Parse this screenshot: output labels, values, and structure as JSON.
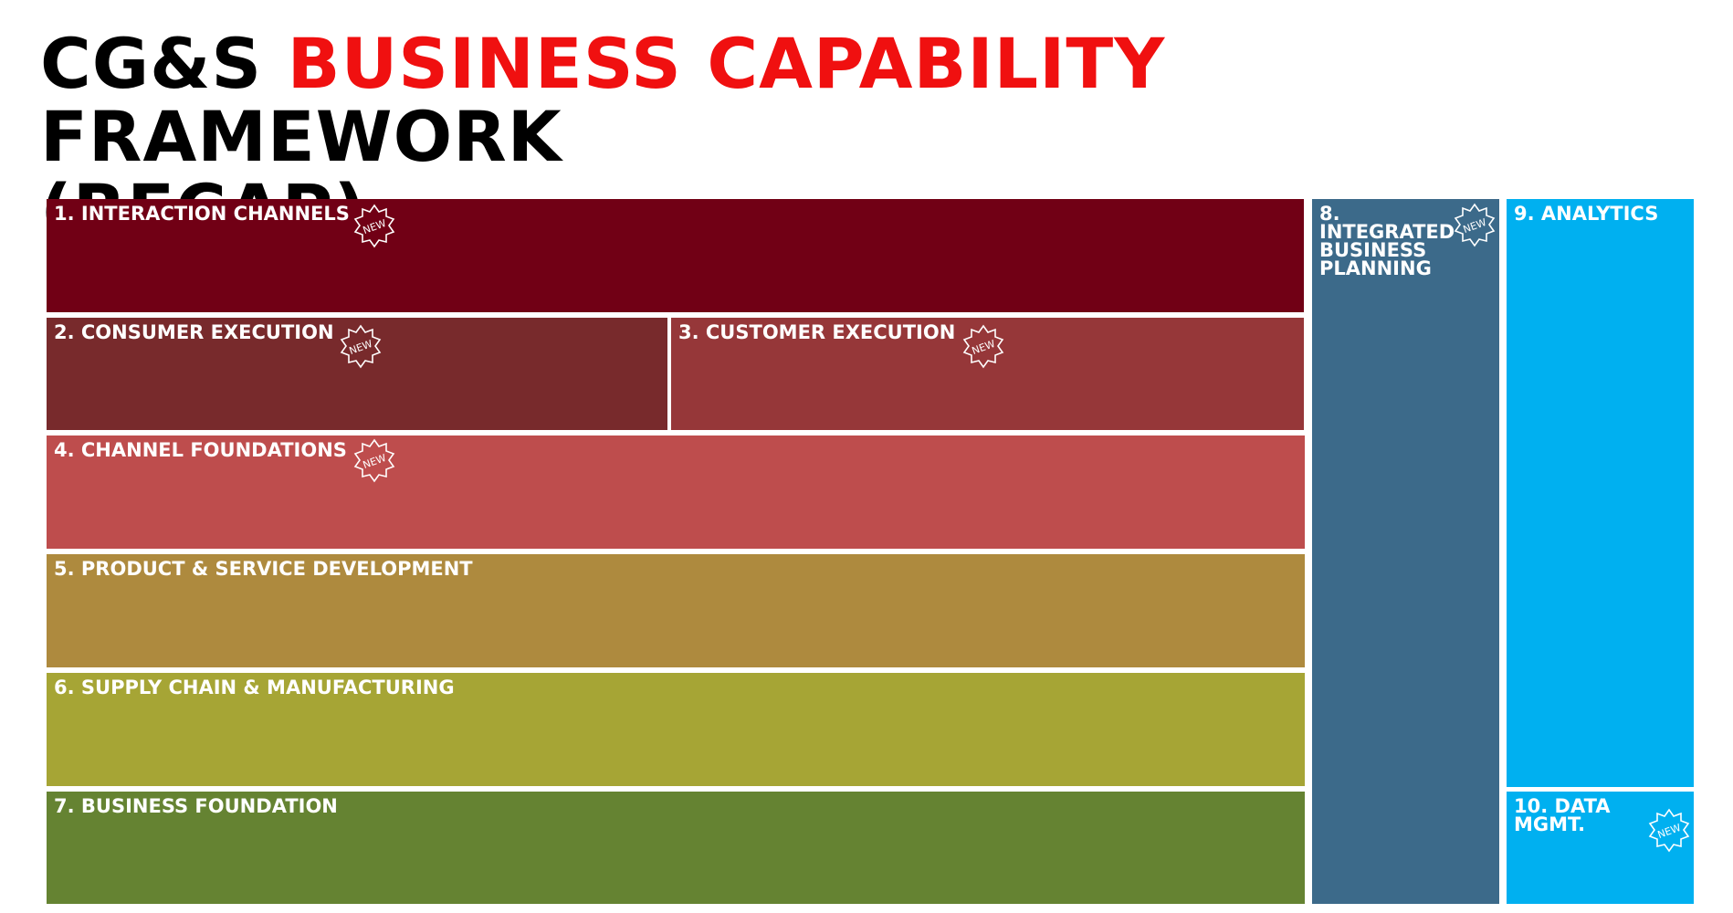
{
  "title": {
    "part1": "CG&S",
    "part2": "BUSINESS CAPABILITY",
    "part3": "FRAMEWORK",
    "part4": "(RECAP)"
  },
  "colors": {
    "title_accent": "#f01010",
    "interaction_channels": "#710015",
    "consumer_execution": "#782a2c",
    "customer_execution": "#963739",
    "channel_foundations": "#be4d4d",
    "product_service": "#ae8a3e",
    "supply_chain": "#a6a535",
    "business_foundation": "#658332",
    "integrated_planning": "#3c6a8a",
    "analytics": "#00b0f0",
    "data_mgmt": "#00b0f0"
  },
  "badge_text": "NEW",
  "capabilities": {
    "interaction_channels": "1. INTERACTION CHANNELS",
    "consumer_execution": "2. CONSUMER EXECUTION",
    "customer_execution": "3. CUSTOMER EXECUTION",
    "channel_foundations": "4. CHANNEL FOUNDATIONS",
    "product_service": "5. PRODUCT & SERVICE DEVELOPMENT",
    "supply_chain": "6. SUPPLY CHAIN & MANUFACTURING",
    "business_foundation": "7. BUSINESS FOUNDATION",
    "integrated_planning": {
      "line1": "8.",
      "line2": "INTEGRATED",
      "line3": "BUSINESS",
      "line4": "PLANNING"
    },
    "analytics": "9. ANALYTICS",
    "data_mgmt": "10. DATA MGMT."
  }
}
